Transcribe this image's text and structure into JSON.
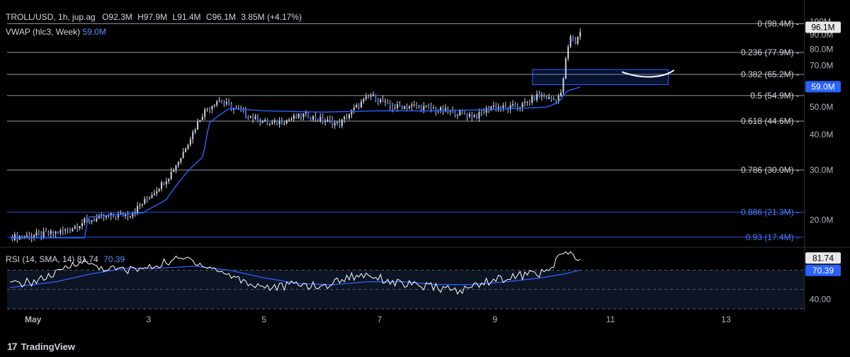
{
  "header": {
    "symbol": "TROLL/USD, 1h, jup.ag",
    "open_label": "O",
    "open": "92.3M",
    "high_label": "H",
    "high": "97.9M",
    "low_label": "L",
    "low": "91.4M",
    "close_label": "C",
    "close": "96.1M",
    "change": "3.85M (+4.17%)",
    "vwap_label": "VWAP (hlc3, Week)",
    "vwap_value": "59.0M"
  },
  "rsi_header": {
    "label": "RSI (14, SMA, 14)",
    "value": "81.74",
    "sma_value": "70.39"
  },
  "footer": {
    "brand": "TradingView"
  },
  "colors": {
    "background": "#000000",
    "candle_body": "#3a6ad9",
    "candle_wick": "#d1d4dc",
    "vwap": "#2962ff",
    "fib_line": "#b2b5be",
    "fib_blue": "#2962ff",
    "rsi_line": "#ffffff",
    "rsi_sma": "#2962ff",
    "box": "#2962ff"
  },
  "chart_data": {
    "type": "candlestick",
    "x_ticks": [
      "May",
      "3",
      "5",
      "7",
      "9",
      "11",
      "13"
    ],
    "x_tick_days": [
      1,
      3,
      5,
      7,
      9,
      11,
      13
    ],
    "x_range_days": [
      0.55,
      14.35
    ],
    "price_axis": {
      "ticks": [
        "100M",
        "90.0M",
        "80.0M",
        "70.0M",
        "60.0M",
        "50.0M",
        "40.0M",
        "30.0M",
        "20.0M"
      ],
      "tick_values": [
        100,
        90,
        80,
        70,
        60,
        50,
        40,
        30,
        20
      ],
      "scale": "log",
      "range": [
        16.5,
        101.5
      ]
    },
    "last_price_label": "96.1M",
    "last_price": 96.1,
    "vwap_label": "59.0M",
    "vwap_last": 59.0,
    "fib_levels": [
      {
        "label": "0 (98.4M)",
        "value": 98.4,
        "color": "gray"
      },
      {
        "label": "0.236 (77.9M)",
        "value": 77.9,
        "color": "gray"
      },
      {
        "label": "0.382 (65.2M)",
        "value": 65.2,
        "color": "gray"
      },
      {
        "label": "0.5 (54.9M)",
        "value": 54.9,
        "color": "gray"
      },
      {
        "label": "0.618 (44.6M)",
        "value": 44.6,
        "color": "gray"
      },
      {
        "label": "0.786 (30.0M)",
        "value": 30.0,
        "color": "gray"
      },
      {
        "label": "0.886 (21.3M)",
        "value": 21.3,
        "color": "blue"
      },
      {
        "label": "0.93 (17.4M)",
        "value": 17.4,
        "color": "blue"
      }
    ],
    "price_keypoints": [
      [
        0.6,
        17.4
      ],
      [
        1.0,
        17.6
      ],
      [
        1.3,
        17.9
      ],
      [
        1.6,
        18.4
      ],
      [
        1.9,
        19.8
      ],
      [
        2.3,
        20.6
      ],
      [
        2.7,
        21.0
      ],
      [
        2.95,
        23.5
      ],
      [
        3.15,
        25.8
      ],
      [
        3.35,
        28.5
      ],
      [
        3.55,
        33.0
      ],
      [
        3.75,
        40.0
      ],
      [
        3.95,
        48.0
      ],
      [
        4.2,
        53.0
      ],
      [
        4.5,
        49.0
      ],
      [
        4.8,
        46.0
      ],
      [
        5.1,
        43.5
      ],
      [
        5.4,
        45.0
      ],
      [
        5.7,
        47.0
      ],
      [
        6.0,
        45.0
      ],
      [
        6.3,
        43.5
      ],
      [
        6.6,
        50.0
      ],
      [
        6.85,
        55.0
      ],
      [
        7.2,
        50.0
      ],
      [
        7.6,
        50.5
      ],
      [
        8.0,
        49.0
      ],
      [
        8.4,
        47.5
      ],
      [
        8.7,
        46.5
      ],
      [
        8.95,
        50.5
      ],
      [
        9.2,
        49.5
      ],
      [
        9.5,
        51.0
      ],
      [
        9.75,
        55.0
      ],
      [
        10.0,
        53.0
      ],
      [
        10.15,
        55.5
      ],
      [
        10.22,
        72.0
      ],
      [
        10.3,
        88.0
      ],
      [
        10.4,
        84.0
      ],
      [
        10.5,
        96.1
      ]
    ],
    "vwap_keypoints": [
      [
        0.6,
        17.3
      ],
      [
        1.9,
        17.3
      ],
      [
        1.95,
        20.5
      ],
      [
        2.9,
        21.2
      ],
      [
        3.3,
        23.5
      ],
      [
        3.7,
        30.0
      ],
      [
        3.95,
        33.5
      ],
      [
        4.05,
        44.0
      ],
      [
        4.4,
        49.5
      ],
      [
        5.0,
        48.5
      ],
      [
        6.0,
        48.0
      ],
      [
        7.0,
        48.5
      ],
      [
        8.0,
        48.5
      ],
      [
        9.0,
        49.0
      ],
      [
        9.9,
        50.0
      ],
      [
        10.1,
        52.0
      ],
      [
        10.25,
        57.0
      ],
      [
        10.5,
        59.0
      ]
    ],
    "box": {
      "x0": 9.65,
      "x1": 12.0,
      "y_top": 67.8,
      "y_bottom": 60.0
    },
    "arc": [
      [
        11.2,
        66.5
      ],
      [
        11.6,
        64.2
      ],
      [
        11.95,
        65.5
      ],
      [
        12.1,
        67.5
      ]
    ],
    "rsi": {
      "ticks": [
        "40.00"
      ],
      "tick_values": [
        40
      ],
      "range": [
        30,
        90
      ],
      "bands": [
        70,
        50,
        30
      ],
      "last_value_label": "81.74",
      "sma_value_label": "70.39",
      "keypoints": [
        [
          0.6,
          55
        ],
        [
          1.0,
          58
        ],
        [
          1.4,
          66
        ],
        [
          1.8,
          80
        ],
        [
          2.2,
          72
        ],
        [
          2.6,
          70
        ],
        [
          3.0,
          72
        ],
        [
          3.4,
          80
        ],
        [
          3.7,
          82
        ],
        [
          4.0,
          74
        ],
        [
          4.4,
          65
        ],
        [
          4.8,
          55
        ],
        [
          5.2,
          52
        ],
        [
          5.6,
          56
        ],
        [
          6.0,
          52
        ],
        [
          6.4,
          62
        ],
        [
          6.8,
          66
        ],
        [
          7.2,
          58
        ],
        [
          7.6,
          54
        ],
        [
          8.0,
          52
        ],
        [
          8.4,
          48
        ],
        [
          8.8,
          58
        ],
        [
          9.2,
          62
        ],
        [
          9.6,
          66
        ],
        [
          9.95,
          68
        ],
        [
          10.1,
          86
        ],
        [
          10.3,
          88
        ],
        [
          10.4,
          79
        ],
        [
          10.5,
          81.74
        ]
      ],
      "sma_keypoints": [
        [
          0.6,
          52
        ],
        [
          1.4,
          58
        ],
        [
          2.0,
          66
        ],
        [
          2.6,
          72
        ],
        [
          3.2,
          72
        ],
        [
          3.8,
          74
        ],
        [
          4.4,
          70
        ],
        [
          5.0,
          62
        ],
        [
          5.6,
          56
        ],
        [
          6.2,
          55
        ],
        [
          6.8,
          58
        ],
        [
          7.4,
          58
        ],
        [
          8.0,
          55
        ],
        [
          8.6,
          55
        ],
        [
          9.2,
          58
        ],
        [
          9.8,
          62
        ],
        [
          10.2,
          66
        ],
        [
          10.5,
          70.39
        ]
      ]
    }
  }
}
